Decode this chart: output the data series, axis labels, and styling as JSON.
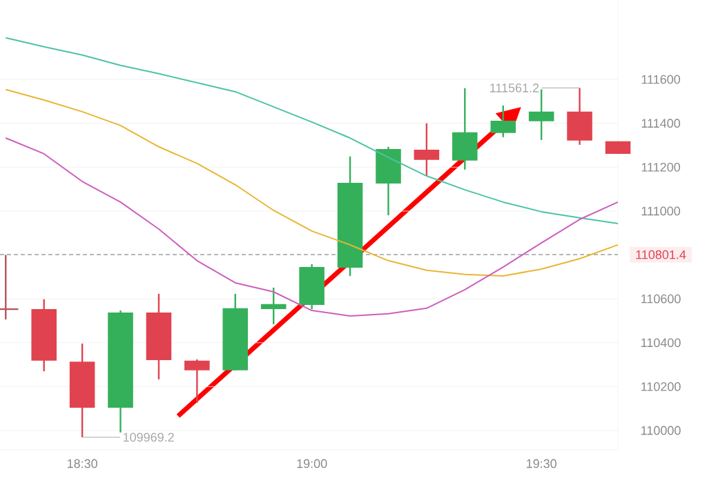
{
  "chart_data": {
    "type": "candlestick",
    "x": [
      18.3333,
      18.4167,
      18.5,
      18.5833,
      18.6667,
      18.75,
      18.8333,
      18.9167,
      19,
      19.0833,
      19.1667,
      19.25,
      19.3333,
      19.4167,
      19.5,
      19.5833,
      19.6667
    ],
    "ohlc": [
      [
        110553,
        110800,
        110506,
        110553
      ],
      [
        110553,
        110598,
        110270,
        110318
      ],
      [
        110314,
        110396,
        109969.2,
        110104
      ],
      [
        110104,
        110547,
        109991,
        110538
      ],
      [
        110538,
        110623,
        110233,
        110321
      ],
      [
        110318,
        110324,
        110126,
        110274
      ],
      [
        110274,
        110623,
        110274,
        110557
      ],
      [
        110553,
        110651,
        110484,
        110576
      ],
      [
        110572,
        110758,
        110553,
        110745
      ],
      [
        110742,
        111249,
        110704,
        111129
      ],
      [
        111126,
        111293,
        110981,
        111283
      ],
      [
        111280,
        111400,
        111160,
        111233
      ],
      [
        111230,
        111560,
        111189,
        111359
      ],
      [
        111356,
        111481,
        111337,
        111412
      ],
      [
        111409,
        111555,
        111324,
        111453
      ],
      [
        111453,
        111561.2,
        111302,
        111321
      ],
      [
        111318,
        111318,
        111261,
        111261
      ]
    ],
    "colors": [
      "#b5525c",
      "#e0434f",
      "#e0434f",
      "#35b05a",
      "#e0434f",
      "#e0434f",
      "#35b05a",
      "#35b05a",
      "#35b05a",
      "#35b05a",
      "#35b05a",
      "#e0434f",
      "#35b05a",
      "#35b05a",
      "#35b05a",
      "#e0434f",
      "#e0434f"
    ],
    "series": [
      {
        "type": "line",
        "color": "#4cc3a6",
        "values": [
          111790,
          111749,
          111711,
          111664,
          111626,
          111585,
          111544,
          111475,
          111406,
          111333,
          111245,
          111160,
          111097,
          111041,
          110997,
          110969,
          110943
        ]
      },
      {
        "type": "line",
        "color": "#e8b634",
        "values": [
          111554,
          111506,
          111453,
          111390,
          111293,
          111217,
          111120,
          111003,
          110909,
          110846,
          110774,
          110730,
          110711,
          110704,
          110736,
          110783,
          110846
        ]
      },
      {
        "type": "line",
        "color": "#cc5fbf",
        "values": [
          111333,
          111261,
          111135,
          111041,
          110918,
          110774,
          110673,
          110632,
          110547,
          110522,
          110532,
          110557,
          110642,
          110745,
          110855,
          110962,
          111041
        ]
      }
    ],
    "xlim": [
      18.3209,
      19.6667
    ],
    "ylim": [
      109912,
      111962
    ],
    "xticks": [
      {
        "value": 18.5,
        "label": "18:30"
      },
      {
        "value": 19,
        "label": "19:00"
      },
      {
        "value": 19.5,
        "label": "19:30"
      }
    ],
    "yticks": [
      110000,
      110200,
      110400,
      110600,
      111000,
      111200,
      111400,
      111600
    ],
    "grid": "y",
    "ref_lines": [
      {
        "axis": "y",
        "value": 110801.4,
        "label": "110801.4",
        "color": "#9e9e9e",
        "line_style": "dashed"
      }
    ],
    "annotations": [
      {
        "text": "111561.2",
        "x": 19.5833,
        "y": 111561.2
      },
      {
        "text": "109969.2",
        "x": 18.5,
        "y": 109969.2
      }
    ]
  }
}
